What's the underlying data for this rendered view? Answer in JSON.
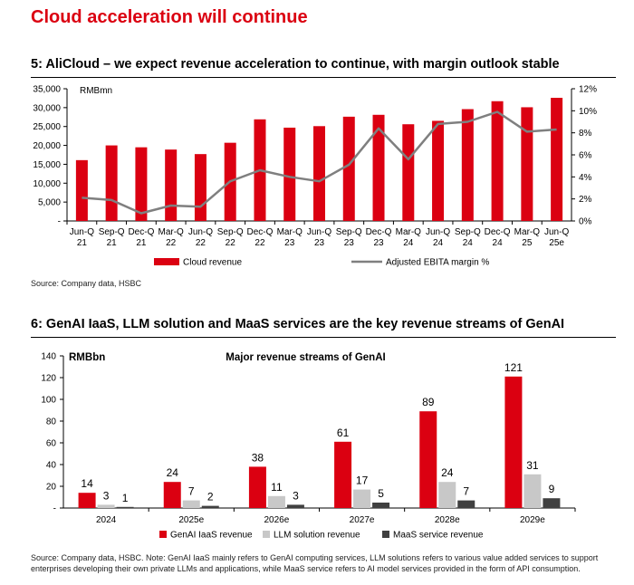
{
  "page_title": "Cloud acceleration will continue",
  "colors": {
    "accent": "#db0011",
    "line": "#7f7f7f",
    "gray_bar": "#c8c8c8",
    "dark_bar": "#404040"
  },
  "chart1": {
    "heading": "5: AliCloud – we expect revenue acceleration to continue, with margin outlook stable",
    "source": "Source: Company data, HSBC",
    "chart_data": {
      "type": "bar+line",
      "unit_label": "RMBmn",
      "categories": [
        [
          "Jun-Q",
          "21"
        ],
        [
          "Sep-Q",
          "21"
        ],
        [
          "Dec-Q",
          "21"
        ],
        [
          "Mar-Q",
          "22"
        ],
        [
          "Jun-Q",
          "22"
        ],
        [
          "Sep-Q",
          "22"
        ],
        [
          "Dec-Q",
          "22"
        ],
        [
          "Mar-Q",
          "23"
        ],
        [
          "Jun-Q",
          "23"
        ],
        [
          "Sep-Q",
          "23"
        ],
        [
          "Dec-Q",
          "23"
        ],
        [
          "Mar-Q",
          "24"
        ],
        [
          "Jun-Q",
          "24"
        ],
        [
          "Sep-Q",
          "24"
        ],
        [
          "Dec-Q",
          "24"
        ],
        [
          "Mar-Q",
          "25"
        ],
        [
          "Jun-Q",
          "25e"
        ]
      ],
      "series": [
        {
          "name": "Cloud revenue",
          "type": "bar",
          "axis": "left",
          "values": [
            16100,
            20000,
            19500,
            18900,
            17700,
            20700,
            26900,
            24700,
            25100,
            27600,
            28100,
            25600,
            26500,
            29600,
            31700,
            30100,
            32600
          ]
        },
        {
          "name": "Adjusted EBITA margin %",
          "type": "line",
          "axis": "right",
          "values": [
            2.1,
            1.9,
            0.7,
            1.4,
            1.3,
            3.6,
            4.6,
            4.0,
            3.6,
            5.1,
            8.4,
            5.6,
            8.8,
            9.0,
            9.9,
            8.1,
            8.3
          ]
        }
      ],
      "y_left": {
        "min": 0,
        "max": 35000,
        "ticks": [
          "-",
          "5,000",
          "10,000",
          "15,000",
          "20,000",
          "25,000",
          "30,000",
          "35,000"
        ]
      },
      "y_right": {
        "min": 0,
        "max": 12,
        "ticks": [
          "0%",
          "2%",
          "4%",
          "6%",
          "8%",
          "10%",
          "12%"
        ]
      },
      "legend": [
        "Cloud revenue",
        "Adjusted EBITA margin %"
      ]
    }
  },
  "chart2": {
    "heading": "6: GenAI IaaS, LLM solution and MaaS services are the key revenue streams of GenAI",
    "source": "Source: Company data, HSBC. Note: GenAI IaaS mainly refers to GenAI computing services, LLM solutions refers to various value added services to support enterprises developing their own private LLMs and applications, while MaaS service refers to AI model services provided in the form of API consumption.",
    "chart_data": {
      "type": "bar",
      "title": "Major revenue streams of GenAI",
      "unit_label": "RMBbn",
      "categories": [
        "2024",
        "2025e",
        "2026e",
        "2027e",
        "2028e",
        "2029e"
      ],
      "series": [
        {
          "name": "GenAI IaaS revenue",
          "values": [
            14,
            24,
            38,
            61,
            89,
            121
          ]
        },
        {
          "name": "LLM solution revenue",
          "values": [
            3,
            7,
            11,
            17,
            24,
            31
          ]
        },
        {
          "name": "MaaS service revenue",
          "values": [
            1,
            2,
            3,
            5,
            7,
            9
          ]
        }
      ],
      "y": {
        "min": 0,
        "max": 140,
        "ticks": [
          "-",
          "20",
          "40",
          "60",
          "80",
          "100",
          "120",
          "140"
        ]
      },
      "legend": [
        "GenAI IaaS revenue",
        "LLM solution revenue",
        "MaaS service revenue"
      ]
    }
  }
}
